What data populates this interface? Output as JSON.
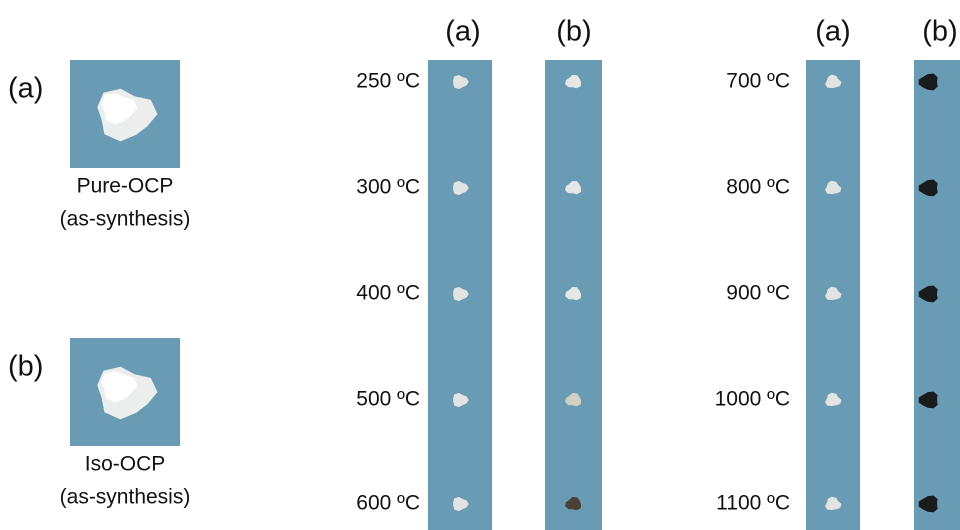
{
  "samples": [
    {
      "label": "(a)",
      "name": "Pure-OCP",
      "note": "(as-synthesis)"
    },
    {
      "label": "(b)",
      "name": "Iso-OCP",
      "note": "(as-synthesis)"
    }
  ],
  "panels": [
    {
      "columns": [
        "(a)",
        "(b)"
      ],
      "temperatures": [
        "250 ºC",
        "300 ºC",
        "400 ºC",
        "500 ºC",
        "600 ºC"
      ]
    },
    {
      "columns": [
        "(a)",
        "(b)"
      ],
      "temperatures": [
        "700 ºC",
        "800 ºC",
        "900 ºC",
        "1000 ºC",
        "1100 ºC"
      ]
    }
  ]
}
